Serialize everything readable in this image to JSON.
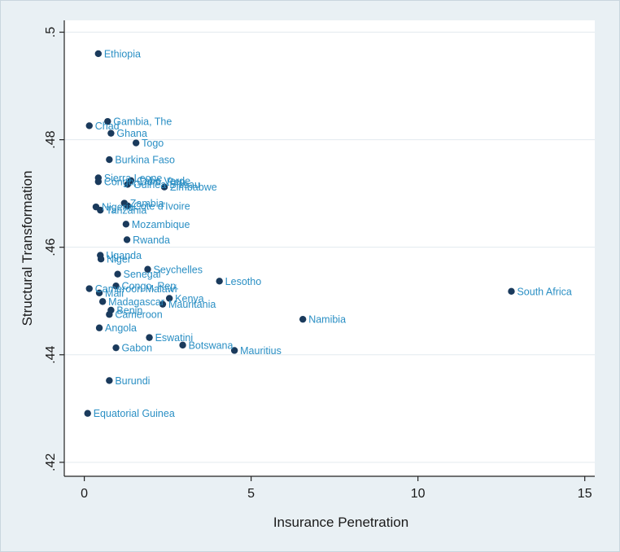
{
  "colors": {
    "figure_bg": "#e9f0f4",
    "plot_bg": "#ffffff",
    "marker": "#1a3a5c",
    "label": "#2a8fc4",
    "axis": "#222222"
  },
  "chart_data": {
    "type": "scatter",
    "title": "",
    "xlabel": "Insurance Penetration",
    "ylabel": "Structural Transformation",
    "xlim": [
      -0.6,
      15.3
    ],
    "ylim": [
      0.4174,
      0.5022
    ],
    "xticks": [
      0,
      5,
      10,
      15
    ],
    "yticks": [
      0.42,
      0.44,
      0.46,
      0.48,
      0.5
    ],
    "xtick_labels": [
      "0",
      "5",
      "10",
      "15"
    ],
    "ytick_labels": [
      ".42",
      ".44",
      ".46",
      ".48",
      ".5"
    ],
    "grid": "horizontal",
    "legend": "none",
    "points": [
      {
        "label": "Ethiopia",
        "x": 0.42,
        "y": 0.496
      },
      {
        "label": "Gambia, The",
        "x": 0.7,
        "y": 0.4834
      },
      {
        "label": "Chad",
        "x": 0.15,
        "y": 0.4826
      },
      {
        "label": "Ghana",
        "x": 0.8,
        "y": 0.4812
      },
      {
        "label": "Togo",
        "x": 1.55,
        "y": 0.4794
      },
      {
        "label": "Burkina Faso",
        "x": 0.75,
        "y": 0.4763
      },
      {
        "label": "Sierra Leone",
        "x": 0.42,
        "y": 0.4729
      },
      {
        "label": "Congo, Dem. Rep.",
        "x": 0.42,
        "y": 0.4722
      },
      {
        "label": "Cabo Verde",
        "x": 1.4,
        "y": 0.4724
      },
      {
        "label": "Guinea-Bissau",
        "x": 1.3,
        "y": 0.4717
      },
      {
        "label": "Zimbabwe",
        "x": 2.4,
        "y": 0.4712
      },
      {
        "label": "Zambia",
        "x": 1.2,
        "y": 0.4682
      },
      {
        "label": "Cote d'Ivoire",
        "x": 1.3,
        "y": 0.4677
      },
      {
        "label": "Nigeria",
        "x": 0.35,
        "y": 0.4675
      },
      {
        "label": "Tanzania",
        "x": 0.48,
        "y": 0.4669
      },
      {
        "label": "Mozambique",
        "x": 1.25,
        "y": 0.4643
      },
      {
        "label": "Rwanda",
        "x": 1.28,
        "y": 0.4614
      },
      {
        "label": "Uganda",
        "x": 0.48,
        "y": 0.4585
      },
      {
        "label": "Niger",
        "x": 0.5,
        "y": 0.4578
      },
      {
        "label": "Seychelles",
        "x": 1.9,
        "y": 0.4559
      },
      {
        "label": "Senegal",
        "x": 1.0,
        "y": 0.455
      },
      {
        "label": "Lesotho",
        "x": 4.05,
        "y": 0.4537
      },
      {
        "label": "Congo, Rep.",
        "x": 0.95,
        "y": 0.4528
      },
      {
        "label": "Cameroon Malawi",
        "x": 0.15,
        "y": 0.4523
      },
      {
        "label": "South Africa",
        "x": 12.8,
        "y": 0.4518
      },
      {
        "label": "Mali",
        "x": 0.45,
        "y": 0.4515
      },
      {
        "label": "Kenya",
        "x": 2.55,
        "y": 0.4505
      },
      {
        "label": "Madagascar",
        "x": 0.55,
        "y": 0.4499
      },
      {
        "label": "Mauritania",
        "x": 2.35,
        "y": 0.4494
      },
      {
        "label": "Benin",
        "x": 0.8,
        "y": 0.4483
      },
      {
        "label": "Cameroon",
        "x": 0.75,
        "y": 0.4475
      },
      {
        "label": "Namibia",
        "x": 6.55,
        "y": 0.4466
      },
      {
        "label": "Angola",
        "x": 0.45,
        "y": 0.445
      },
      {
        "label": "Eswatini",
        "x": 1.95,
        "y": 0.4432
      },
      {
        "label": "Botswana",
        "x": 2.95,
        "y": 0.4418
      },
      {
        "label": "Gabon",
        "x": 0.95,
        "y": 0.4413
      },
      {
        "label": "Mauritius",
        "x": 4.5,
        "y": 0.4408
      },
      {
        "label": "Burundi",
        "x": 0.75,
        "y": 0.4352
      },
      {
        "label": "Equatorial Guinea",
        "x": 0.1,
        "y": 0.4291
      }
    ]
  }
}
